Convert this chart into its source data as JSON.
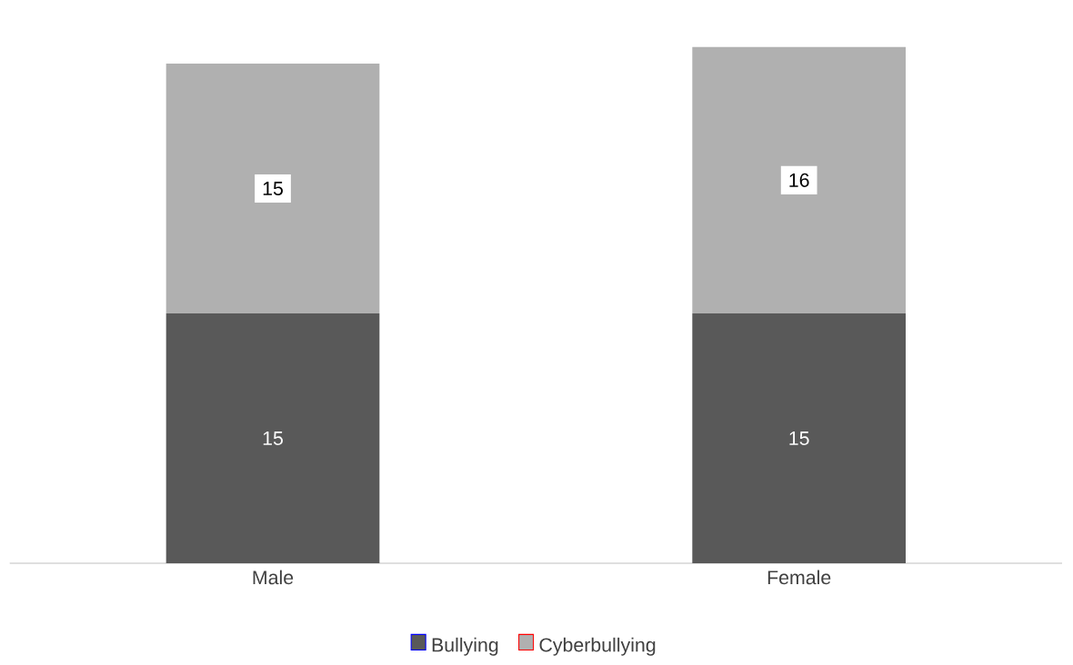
{
  "chart_data": {
    "type": "bar",
    "stacked": true,
    "data_labels": true,
    "legend": "bottom",
    "categories": [
      "Male",
      "Female"
    ],
    "series": [
      {
        "name": "Bullying",
        "color": "#595959",
        "values": [
          15,
          15
        ]
      },
      {
        "name": "Cyberbullying",
        "color": "#b0b0b0",
        "values": [
          15,
          16
        ]
      }
    ]
  }
}
